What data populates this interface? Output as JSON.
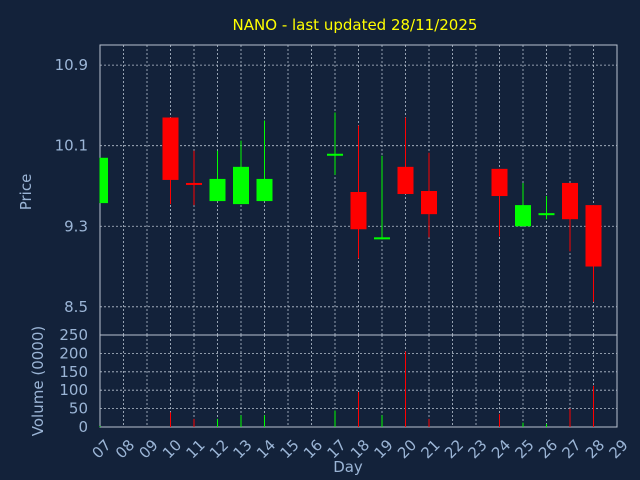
{
  "chart_data": {
    "type": "candlestick",
    "title": "NANO - last updated 28/11/2025",
    "xlabel": "Day",
    "x_ticks": [
      "07",
      "08",
      "09",
      "10",
      "11",
      "12",
      "13",
      "14",
      "15",
      "16",
      "17",
      "18",
      "19",
      "20",
      "21",
      "22",
      "23",
      "24",
      "25",
      "26",
      "27",
      "28",
      "29"
    ],
    "price": {
      "ylabel": "Price",
      "yticks": [
        8.5,
        9.3,
        10.1,
        10.9
      ],
      "ylim": [
        8.22,
        11.1
      ],
      "grid": true,
      "candles": [
        {
          "day": "07",
          "open": 9.53,
          "high": 9.98,
          "low": 9.53,
          "close": 9.98
        },
        {
          "day": "10",
          "open": 10.38,
          "high": 10.38,
          "low": 9.52,
          "close": 9.76
        },
        {
          "day": "11",
          "open": 9.73,
          "high": 10.05,
          "low": 9.51,
          "close": 9.72
        },
        {
          "day": "12",
          "open": 9.55,
          "high": 10.05,
          "low": 9.55,
          "close": 9.77
        },
        {
          "day": "13",
          "open": 9.52,
          "high": 10.15,
          "low": 9.52,
          "close": 9.89
        },
        {
          "day": "14",
          "open": 9.55,
          "high": 10.35,
          "low": 9.55,
          "close": 9.77
        },
        {
          "day": "17",
          "open": 10.0,
          "high": 10.43,
          "low": 9.81,
          "close": 10.02
        },
        {
          "day": "18",
          "open": 9.64,
          "high": 10.3,
          "low": 8.98,
          "close": 9.27
        },
        {
          "day": "19",
          "open": 9.17,
          "high": 10.0,
          "low": 9.17,
          "close": 9.19
        },
        {
          "day": "20",
          "open": 9.89,
          "high": 10.38,
          "low": 9.62,
          "close": 9.62
        },
        {
          "day": "21",
          "open": 9.65,
          "high": 10.03,
          "low": 9.19,
          "close": 9.42
        },
        {
          "day": "24",
          "open": 9.87,
          "high": 9.87,
          "low": 9.2,
          "close": 9.6
        },
        {
          "day": "25",
          "open": 9.3,
          "high": 9.73,
          "low": 9.3,
          "close": 9.51
        },
        {
          "day": "26",
          "open": 9.41,
          "high": 9.6,
          "low": 9.37,
          "close": 9.43
        },
        {
          "day": "27",
          "open": 9.73,
          "high": 9.73,
          "low": 9.05,
          "close": 9.37
        },
        {
          "day": "28",
          "open": 9.51,
          "high": 9.51,
          "low": 8.55,
          "close": 8.9
        }
      ]
    },
    "volume": {
      "ylabel": "Volume (0000)",
      "yticks": [
        0,
        50,
        100,
        150,
        200,
        250
      ],
      "ylim": [
        0,
        250
      ],
      "bars": [
        {
          "day": "07",
          "value": 3,
          "color": "green"
        },
        {
          "day": "10",
          "value": 40,
          "color": "red"
        },
        {
          "day": "11",
          "value": 22,
          "color": "red"
        },
        {
          "day": "12",
          "value": 22,
          "color": "green"
        },
        {
          "day": "13",
          "value": 32,
          "color": "green"
        },
        {
          "day": "14",
          "value": 32,
          "color": "green"
        },
        {
          "day": "17",
          "value": 45,
          "color": "green"
        },
        {
          "day": "18",
          "value": 95,
          "color": "red"
        },
        {
          "day": "19",
          "value": 32,
          "color": "green"
        },
        {
          "day": "20",
          "value": 205,
          "color": "red"
        },
        {
          "day": "21",
          "value": 22,
          "color": "red"
        },
        {
          "day": "24",
          "value": 35,
          "color": "red"
        },
        {
          "day": "25",
          "value": 12,
          "color": "green"
        },
        {
          "day": "26",
          "value": 8,
          "color": "green"
        },
        {
          "day": "27",
          "value": 50,
          "color": "red"
        },
        {
          "day": "28",
          "value": 112,
          "color": "red"
        }
      ]
    },
    "colors": {
      "background": "#13223a",
      "title": "#ffff00",
      "axis_text": "#9bb5d6",
      "grid": "#b8c2d0",
      "up": "#00ff00",
      "down": "#ff0000"
    }
  }
}
